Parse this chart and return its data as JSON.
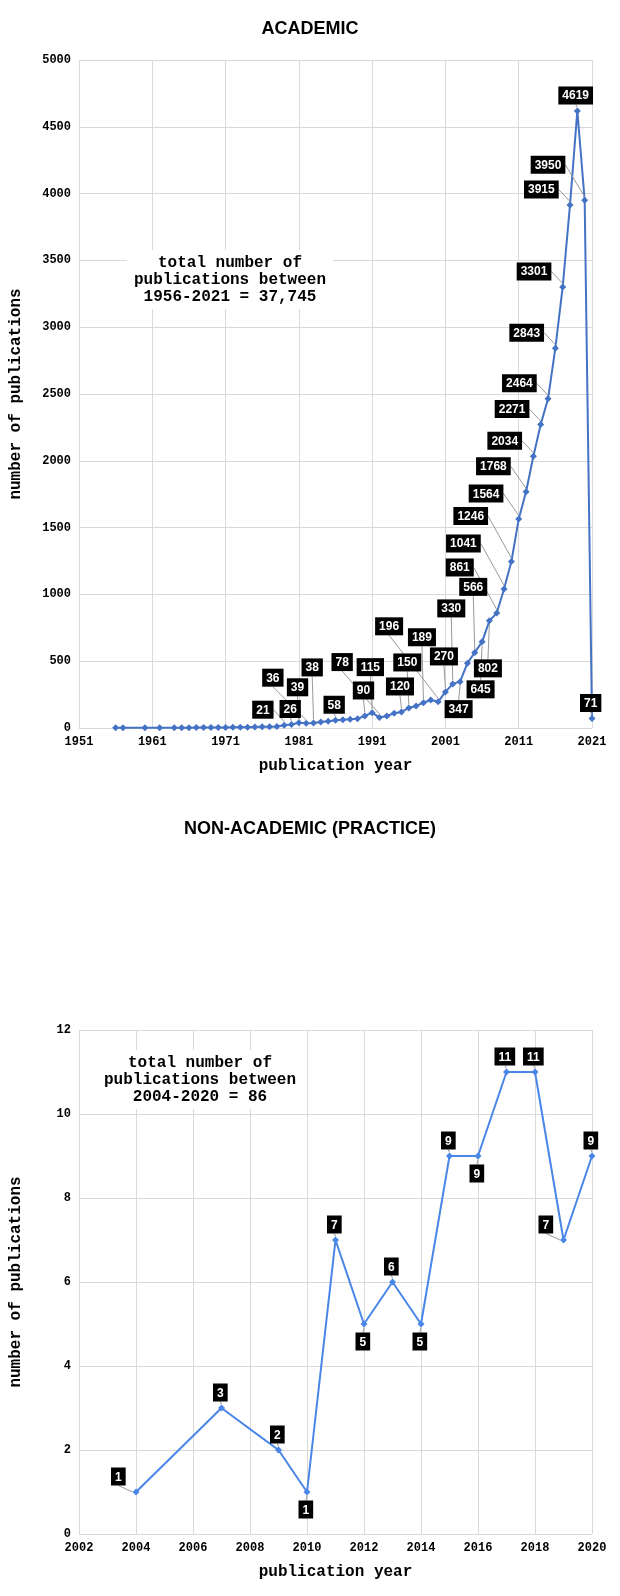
{
  "chart_data": [
    {
      "type": "line",
      "title": "ACADEMIC",
      "xlabel": "publication year",
      "ylabel": "number of publications",
      "x": [
        1956,
        1957,
        1960,
        1962,
        1964,
        1965,
        1966,
        1967,
        1968,
        1969,
        1970,
        1971,
        1972,
        1973,
        1974,
        1975,
        1976,
        1977,
        1978,
        1979,
        1980,
        1981,
        1982,
        1983,
        1984,
        1985,
        1986,
        1987,
        1988,
        1989,
        1990,
        1991,
        1992,
        1993,
        1994,
        1995,
        1996,
        1997,
        1998,
        1999,
        2000,
        2001,
        2002,
        2003,
        2004,
        2005,
        2006,
        2007,
        2008,
        2009,
        2010,
        2011,
        2012,
        2013,
        2014,
        2015,
        2016,
        2017,
        2018,
        2019,
        2020,
        2021
      ],
      "series": [
        {
          "color": "#4472c4",
          "values": [
            1,
            1,
            1,
            1,
            2,
            2,
            2,
            3,
            3,
            3,
            4,
            4,
            5,
            6,
            6,
            8,
            9,
            10,
            12,
            21,
            26,
            39,
            36,
            38,
            45,
            50,
            58,
            62,
            65,
            70,
            90,
            115,
            78,
            90,
            110,
            120,
            150,
            165,
            189,
            210,
            196,
            270,
            330,
            347,
            485,
            566,
            645,
            802,
            861,
            1041,
            1246,
            1564,
            1768,
            2034,
            2271,
            2464,
            2843,
            3301,
            3915,
            4619,
            3950,
            71
          ],
          "value_labels": [
            null,
            null,
            null,
            null,
            null,
            null,
            null,
            null,
            null,
            null,
            null,
            null,
            null,
            null,
            null,
            null,
            null,
            null,
            null,
            "21",
            "26",
            "39",
            "36",
            "38",
            null,
            null,
            "58",
            null,
            null,
            null,
            "90",
            "115",
            "78",
            null,
            null,
            "120",
            "150",
            null,
            "189",
            null,
            "196",
            "270",
            "330",
            "347",
            null,
            "566",
            "645",
            "802",
            "861",
            "1041",
            "1246",
            "1564",
            "1768",
            "2034",
            "2271",
            "2464",
            "2843",
            "3301",
            "3915",
            "4619",
            "3950",
            "71"
          ]
        }
      ],
      "xlim": [
        1951,
        2021
      ],
      "xticks": [
        1951,
        1961,
        1971,
        1981,
        1991,
        2001,
        2011,
        2021
      ],
      "ylim": [
        0,
        5000
      ],
      "yticks": [
        0,
        500,
        1000,
        1500,
        2000,
        2500,
        3000,
        3500,
        4000,
        4500,
        5000
      ],
      "grid": true,
      "marker": "diamond",
      "line_style": "solid",
      "annotations": [
        "total number of\npublications between\n1956-2021 = 37,745"
      ]
    },
    {
      "type": "line",
      "title": "NON-ACADEMIC (PRACTICE)",
      "xlabel": "publication year",
      "ylabel": "number of publications",
      "x": [
        2004,
        2007,
        2009,
        2010,
        2011,
        2012,
        2013,
        2014,
        2015,
        2016,
        2017,
        2018,
        2019,
        2020
      ],
      "series": [
        {
          "color": "#4a86e8",
          "values": [
            1,
            3,
            2,
            1,
            7,
            5,
            6,
            5,
            9,
            9,
            11,
            11,
            7,
            9
          ]
        }
      ],
      "xlim": [
        2002,
        2020
      ],
      "xticks": [
        2002,
        2004,
        2006,
        2008,
        2010,
        2012,
        2014,
        2016,
        2018,
        2020
      ],
      "ylim": [
        0,
        12
      ],
      "yticks": [
        0,
        2,
        4,
        6,
        8,
        10,
        12
      ],
      "grid": true,
      "marker": "diamond",
      "line_style": "solid",
      "data_labels": true,
      "annotations": [
        "total number of\npublications between\n2004-2020 = 86"
      ]
    }
  ]
}
